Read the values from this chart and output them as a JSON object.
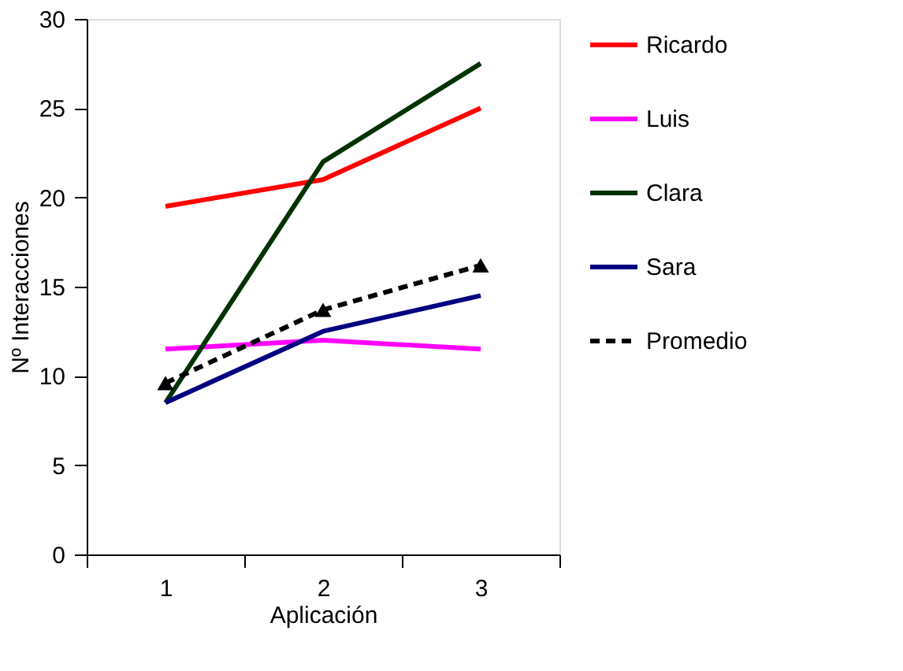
{
  "chart_data": {
    "type": "line",
    "xlabel": "Aplicación",
    "ylabel": "Nº Interacciones",
    "categories": [
      "1",
      "2",
      "3"
    ],
    "series": [
      {
        "name": "Ricardo",
        "color": "#ff0000",
        "values": [
          19.5,
          21,
          25
        ]
      },
      {
        "name": "Luis",
        "color": "#ff00ff",
        "values": [
          11.5,
          12,
          11.5
        ]
      },
      {
        "name": "Clara",
        "color": "#003300",
        "values": [
          8.5,
          22,
          27.5
        ]
      },
      {
        "name": "Sara",
        "color": "#000080",
        "values": [
          8.5,
          12.5,
          14.5
        ]
      },
      {
        "name": "Promedio",
        "color": "#000000",
        "values": [
          9.6,
          13.7,
          16.2
        ],
        "line_style": "dashed",
        "marker": "triangle"
      }
    ],
    "ylim": [
      0,
      30
    ],
    "yticks": [
      0,
      5,
      10,
      15,
      20,
      25,
      30
    ],
    "grid": false,
    "legend": "right"
  }
}
